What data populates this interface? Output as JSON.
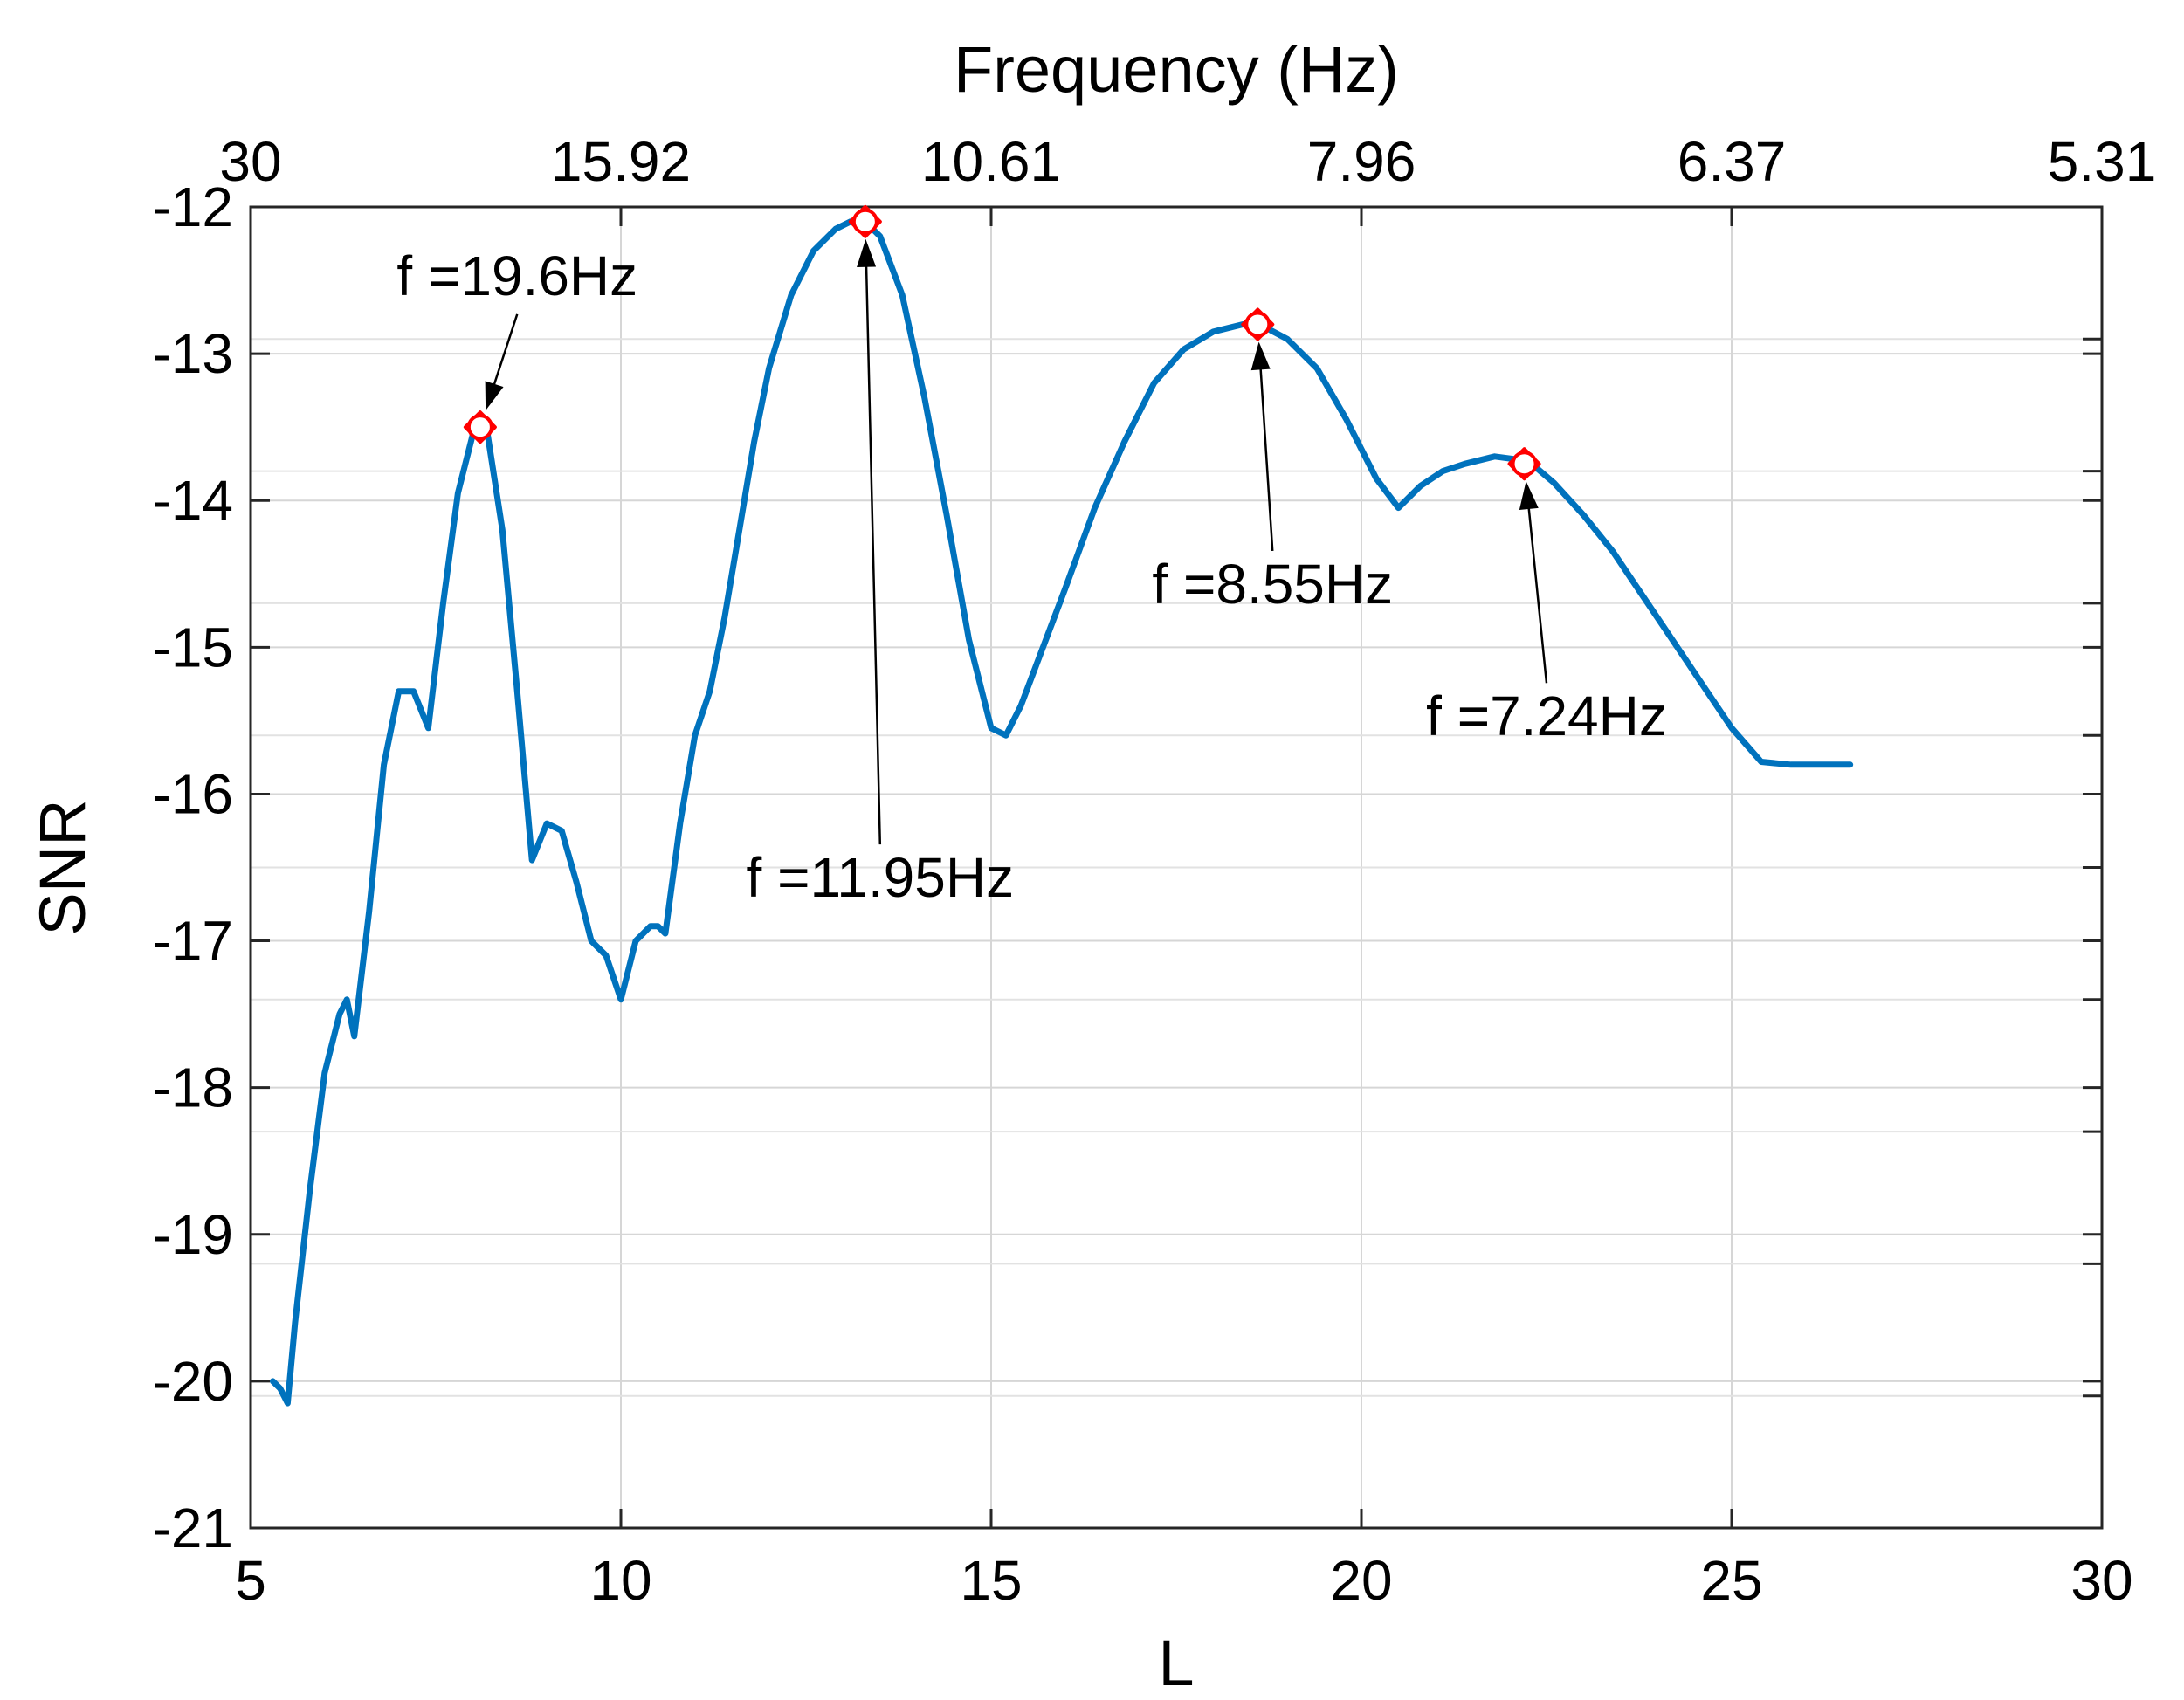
{
  "chart_data": {
    "type": "line",
    "title": "",
    "xlabel": "L",
    "ylabel": "SNR",
    "x2label": "Frequency (Hz)",
    "xlim": [
      5,
      30
    ],
    "ylim": [
      -21,
      -12
    ],
    "xticks": [
      5,
      10,
      15,
      20,
      25,
      30
    ],
    "yticks": [
      -21,
      -20,
      -19,
      -18,
      -17,
      -16,
      -15,
      -14,
      -13,
      -12
    ],
    "x2ticks": [
      {
        "at": 5,
        "label": "30"
      },
      {
        "at": 10,
        "label": "15.92"
      },
      {
        "at": 15,
        "label": "10.61"
      },
      {
        "at": 20,
        "label": "7.96"
      },
      {
        "at": 25,
        "label": "6.37"
      },
      {
        "at": 30,
        "label": "5.31"
      }
    ],
    "y_minor_grid": [
      -20.1,
      -19.2,
      -18.3,
      -17.4,
      -16.5,
      -15.6,
      -14.7,
      -13.8,
      -12.9
    ],
    "grid": true,
    "colors": {
      "series": "#0072bd",
      "marker": "#ff0000"
    },
    "series": [
      {
        "x": [
          5.3,
          5.4,
          5.5,
          5.6,
          5.8,
          6.0,
          6.2,
          6.3,
          6.4,
          6.6,
          6.8,
          7.0,
          7.2,
          7.4,
          7.6,
          7.8,
          8.0,
          8.1,
          8.2,
          8.4,
          8.6,
          8.8,
          9.0,
          9.2,
          9.4,
          9.6,
          9.8,
          10.0,
          10.2,
          10.4,
          10.5,
          10.6,
          10.8,
          11.0,
          11.2,
          11.4,
          11.6,
          11.8,
          12.0,
          12.3,
          12.6,
          12.9,
          13.1,
          13.3,
          13.5,
          13.8,
          14.1,
          14.4,
          14.7,
          15.0,
          15.2,
          15.4,
          15.7,
          16.0,
          16.4,
          16.8,
          17.2,
          17.6,
          18.0,
          18.4,
          18.7,
          19.0,
          19.4,
          19.8,
          20.2,
          20.5,
          20.8,
          21.1,
          21.4,
          21.8,
          22.1,
          22.3,
          22.6,
          23.0,
          23.4,
          23.8,
          24.2,
          24.6,
          25.0,
          25.4,
          25.8,
          26.2,
          26.4,
          26.6
        ],
        "y": [
          -20.0,
          -20.05,
          -20.15,
          -19.6,
          -18.7,
          -17.9,
          -17.5,
          -17.4,
          -17.65,
          -16.8,
          -15.8,
          -15.3,
          -15.3,
          -15.55,
          -14.7,
          -13.95,
          -13.55,
          -13.5,
          -13.55,
          -14.2,
          -15.3,
          -16.45,
          -16.2,
          -16.25,
          -16.6,
          -17.0,
          -17.1,
          -17.4,
          -17.0,
          -16.9,
          -16.9,
          -16.95,
          -16.2,
          -15.6,
          -15.3,
          -14.8,
          -14.2,
          -13.6,
          -13.1,
          -12.6,
          -12.3,
          -12.15,
          -12.1,
          -12.1,
          -12.2,
          -12.6,
          -13.3,
          -14.1,
          -14.95,
          -15.55,
          -15.6,
          -15.4,
          -15.0,
          -14.6,
          -14.05,
          -13.6,
          -13.2,
          -12.97,
          -12.85,
          -12.8,
          -12.82,
          -12.9,
          -13.1,
          -13.45,
          -13.85,
          -14.05,
          -13.9,
          -13.8,
          -13.75,
          -13.7,
          -13.72,
          -13.75,
          -13.88,
          -14.1,
          -14.35,
          -14.65,
          -14.95,
          -15.25,
          -15.55,
          -15.78,
          -15.8,
          -15.8,
          -15.8,
          -15.8
        ]
      }
    ],
    "annotations": [
      {
        "text": "f =19.6Hz",
        "x": 8.1,
        "y": -13.5,
        "text_x": 8.6,
        "text_y": -12.6
      },
      {
        "text": "f =11.95Hz",
        "x": 13.3,
        "y": -12.1,
        "text_x": 13.5,
        "text_y": -16.7
      },
      {
        "text": "f =8.55Hz",
        "x": 18.6,
        "y": -12.8,
        "text_x": 18.8,
        "text_y": -14.7
      },
      {
        "text": "f =7.24Hz",
        "x": 22.2,
        "y": -13.75,
        "text_x": 22.5,
        "text_y": -15.6
      }
    ]
  }
}
